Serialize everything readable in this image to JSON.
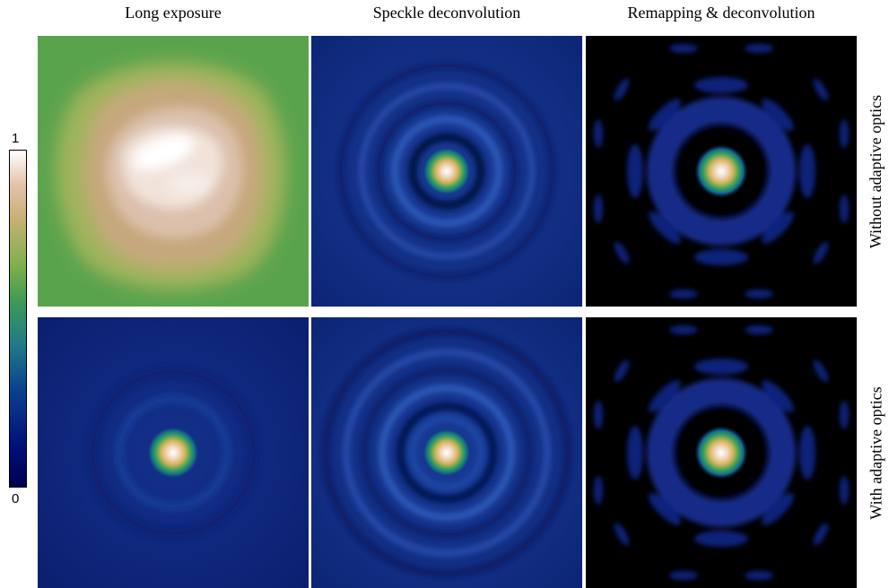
{
  "columns": [
    "Long exposure",
    "Speckle deconvolution",
    "Remapping & deconvolution"
  ],
  "rows": [
    "Without adaptive optics",
    "With adaptive optics"
  ],
  "colorbar": {
    "max_label": "1",
    "min_label": "0"
  },
  "colors": {
    "deep_navy": "#000050",
    "blue": "#1c3f9e",
    "green": "#4ea14a",
    "tan": "#c9a77e",
    "white": "#ffffff",
    "black": "#000000"
  }
}
